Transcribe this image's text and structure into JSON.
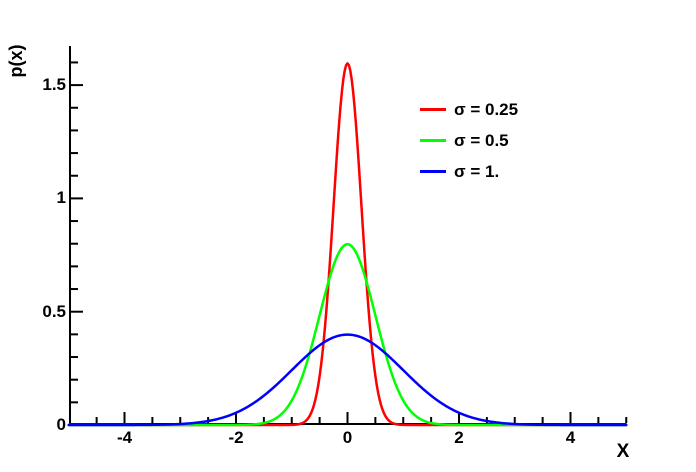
{
  "figure": {
    "background_color": "#ffffff",
    "axis_color": "#000000",
    "text_color": "#000000"
  },
  "chart_data": {
    "type": "line",
    "title": "",
    "xlabel": "X",
    "ylabel": "p(x)",
    "xlim": [
      -5,
      5
    ],
    "ylim": [
      0,
      1.672
    ],
    "grid": false,
    "frame": "left-and-bottom-axes-only",
    "x_major_ticks": [
      -4,
      -2,
      0,
      2,
      4
    ],
    "x_major_tick_labels": [
      "-4",
      "-2",
      "0",
      "2",
      "4"
    ],
    "x_minor_tick_step": 0.5,
    "y_major_ticks": [
      0,
      0.5,
      1,
      1.5
    ],
    "y_major_tick_labels": [
      "0",
      "0.5",
      "1",
      "1.5"
    ],
    "y_minor_tick_step": 0.1,
    "legend_position": "upper-right",
    "function_form": "p(x) = exp(-(x-mean)^2/(2*sigma^2)) / (sigma*sqrt(2*pi))",
    "x_sample_range": [
      -5,
      5
    ],
    "series": [
      {
        "name": "σ = 0.25",
        "sigma": 0.25,
        "mean": 0,
        "peak_value": 1.5958,
        "color": "#ff0000"
      },
      {
        "name": "σ = 0.5",
        "sigma": 0.5,
        "mean": 0,
        "peak_value": 0.7979,
        "color": "#00ff00"
      },
      {
        "name": "σ = 1.",
        "sigma": 1.0,
        "mean": 0,
        "peak_value": 0.3989,
        "color": "#0000ff"
      }
    ]
  }
}
